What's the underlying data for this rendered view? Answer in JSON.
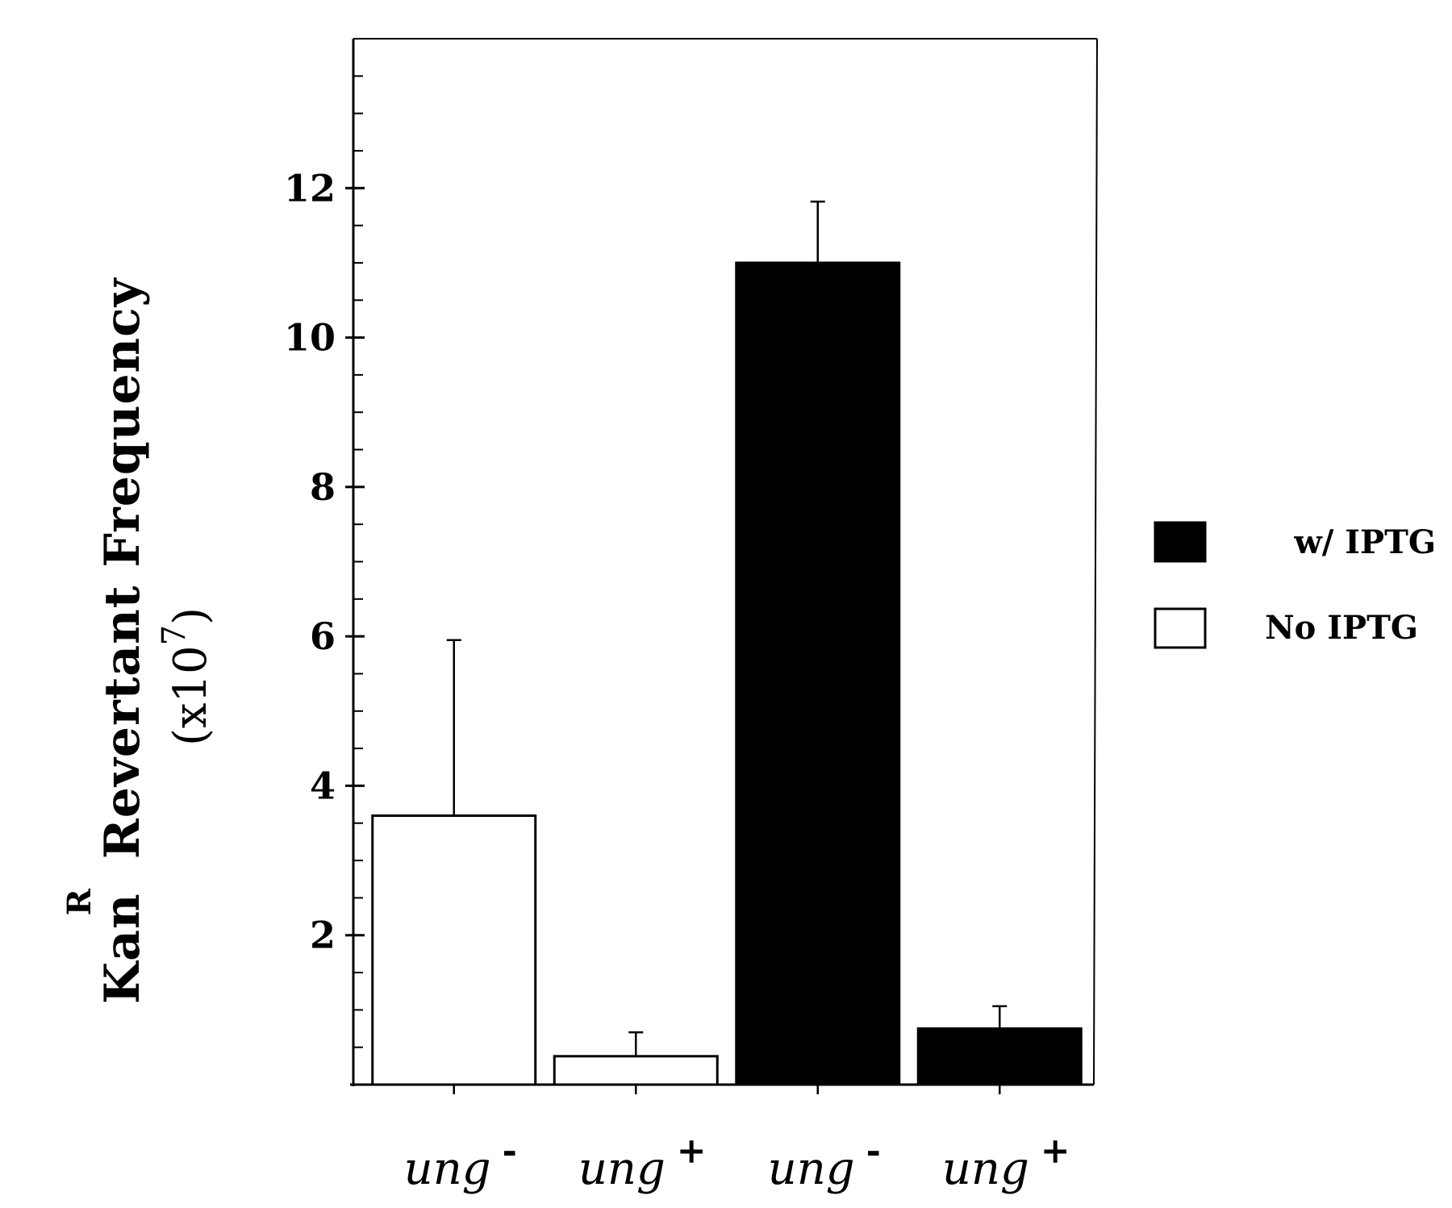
{
  "chart_data": {
    "type": "bar",
    "title": "",
    "xlabel": "",
    "ylabel": {
      "base": "Kan",
      "superscript": "R",
      "rest": "Revertant  Frequency",
      "unit_open": "(x10",
      "unit_exp": "7",
      "unit_close": ")"
    },
    "ylim": [
      0,
      14
    ],
    "yticks": [
      2,
      4,
      6,
      8,
      10,
      12
    ],
    "ytick_labels": [
      "2",
      "4",
      "6",
      "8",
      "10",
      "12"
    ],
    "minor_tick_step": 0.5,
    "grid": false,
    "legend_position": "right",
    "categories": [
      {
        "base": "ung",
        "sup": "-"
      },
      {
        "base": "ung",
        "sup": "+"
      },
      {
        "base": "ung",
        "sup": "-"
      },
      {
        "base": "ung",
        "sup": "+"
      }
    ],
    "series": [
      {
        "name": "w/ IPTG",
        "fill": "#000000",
        "values": [
          null,
          null,
          11.0,
          0.75
        ],
        "errors": [
          null,
          null,
          0.82,
          0.3
        ]
      },
      {
        "name": "No IPTG",
        "fill": "#ffffff",
        "values": [
          3.6,
          0.38,
          null,
          null
        ],
        "errors": [
          2.35,
          0.32,
          null,
          null
        ]
      }
    ],
    "legend": [
      {
        "label": "w/ IPTG",
        "fill": "#000000"
      },
      {
        "label": "No IPTG",
        "fill": "#ffffff"
      }
    ]
  }
}
